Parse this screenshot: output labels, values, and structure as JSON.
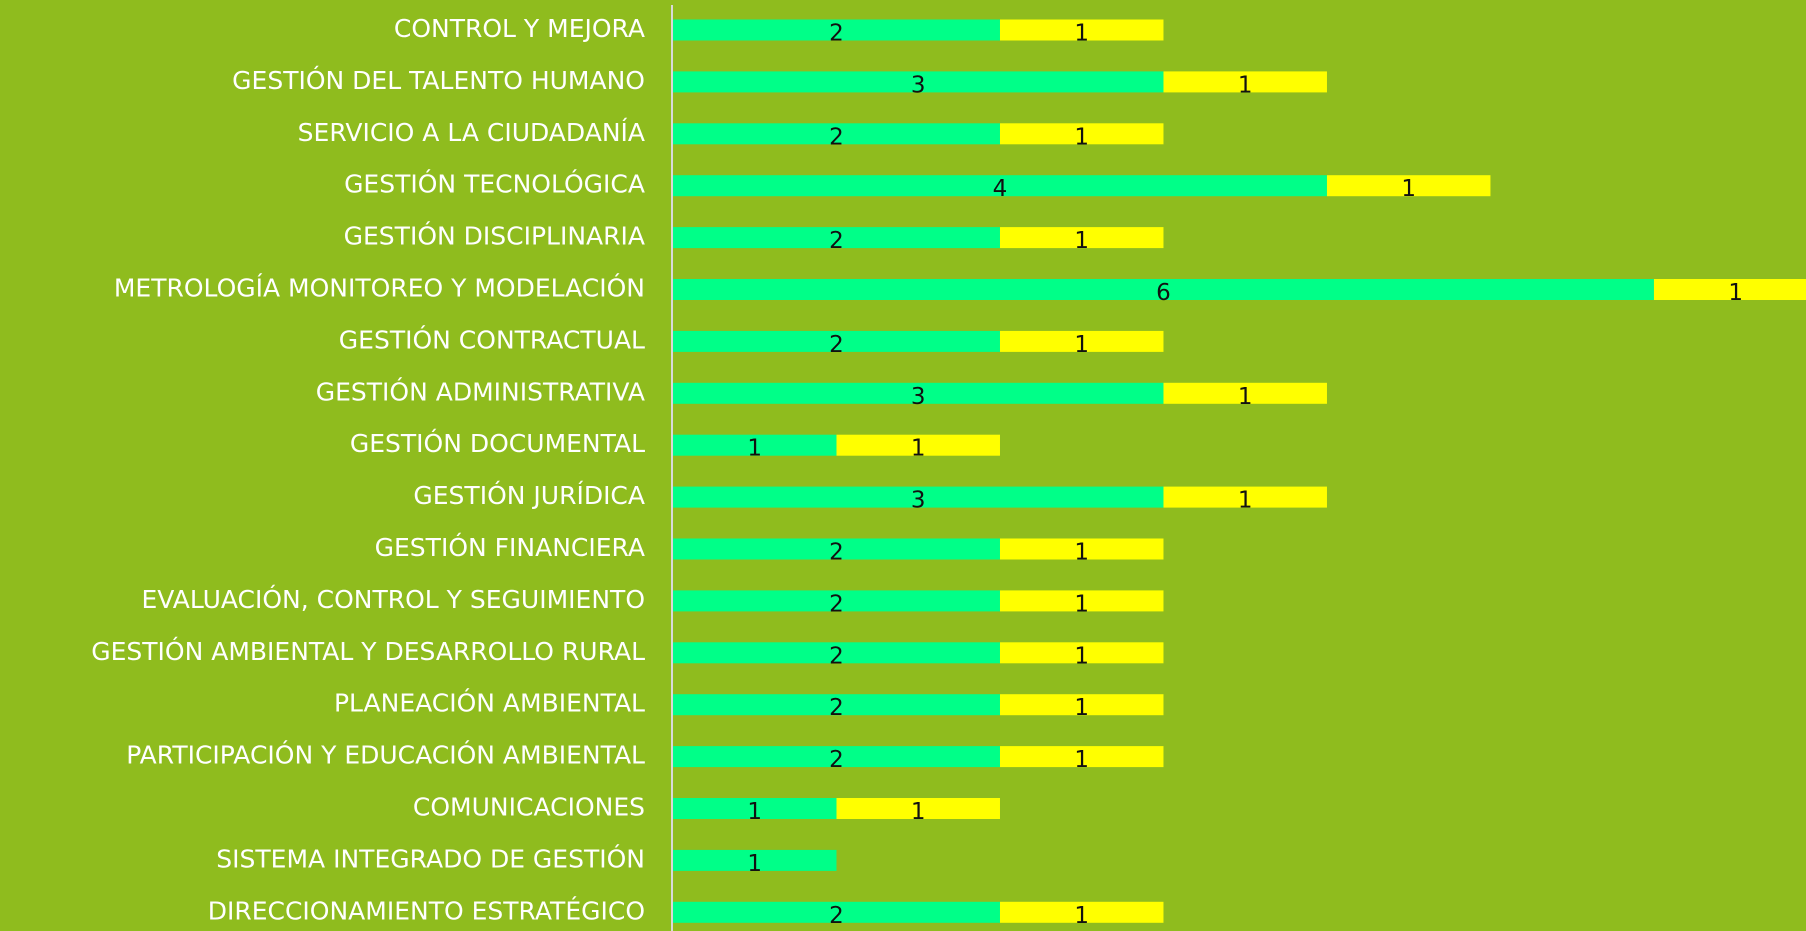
{
  "chart_data": {
    "type": "stacked_bar_horizontal",
    "categories": [
      "CONTROL Y MEJORA",
      "GESTIÓN DEL TALENTO HUMANO",
      "SERVICIO A LA CIUDADANÍA",
      "GESTIÓN TECNOLÓGICA",
      "GESTIÓN DISCIPLINARIA",
      "METROLOGÍA MONITOREO Y MODELACIÓN",
      "GESTIÓN CONTRACTUAL",
      "GESTIÓN ADMINISTRATIVA",
      "GESTIÓN DOCUMENTAL ",
      "GESTIÓN JURÍDICA",
      "GESTIÓN FINANCIERA",
      "EVALUACIÓN, CONTROL Y SEGUIMIENTO",
      "GESTIÓN AMBIENTAL Y DESARROLLO RURAL",
      "PLANEACIÓN AMBIENTAL",
      "PARTICIPACIÓN Y EDUCACIÓN AMBIENTAL",
      "COMUNICACIONES",
      "SISTEMA INTEGRADO DE GESTIÓN",
      "DIRECCIONAMIENTO ESTRATÉGICO"
    ],
    "series": [
      {
        "color": "#00FF88",
        "values": [
          2,
          3,
          2,
          4,
          2,
          6,
          2,
          3,
          1,
          3,
          2,
          2,
          2,
          2,
          2,
          1,
          1,
          2
        ]
      },
      {
        "color": "#FFFF00",
        "values": [
          1,
          1,
          1,
          1,
          1,
          1,
          1,
          1,
          1,
          1,
          1,
          1,
          1,
          1,
          1,
          1,
          null,
          1
        ]
      }
    ],
    "xlim": [
      0,
      6.93
    ]
  }
}
